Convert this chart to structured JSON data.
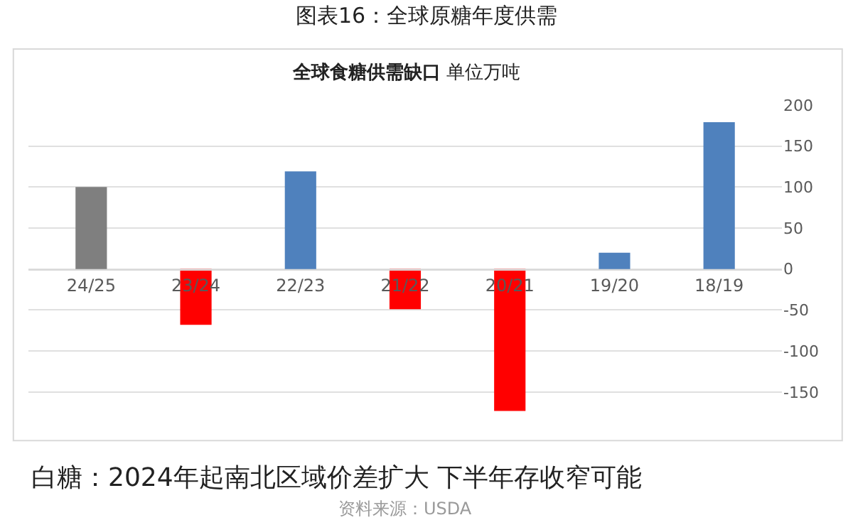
{
  "chart_data": {
    "type": "bar",
    "title": "图表16：全球原糖年度供需",
    "subtitle": "全球食糖供需缺口 单位万吨",
    "categories": [
      "24/25",
      "23/24",
      "22/23",
      "21/22",
      "20/21",
      "19/20",
      "18/19"
    ],
    "values": [
      100,
      -68,
      119,
      -49,
      -173,
      20,
      179
    ],
    "colors": [
      "#7f7f7f",
      "#ff0000",
      "#4f81bd",
      "#ff0000",
      "#ff0000",
      "#4f81bd",
      "#4f81bd"
    ],
    "ylim": [
      -175,
      200
    ],
    "yticks": [
      -150,
      -100,
      -50,
      0,
      50,
      100,
      150,
      200
    ],
    "grid": "y",
    "annotations": [
      "白糖：2024年起南北区域价差扩大 下半年存收窄可能",
      "资料来源：USDA"
    ]
  }
}
